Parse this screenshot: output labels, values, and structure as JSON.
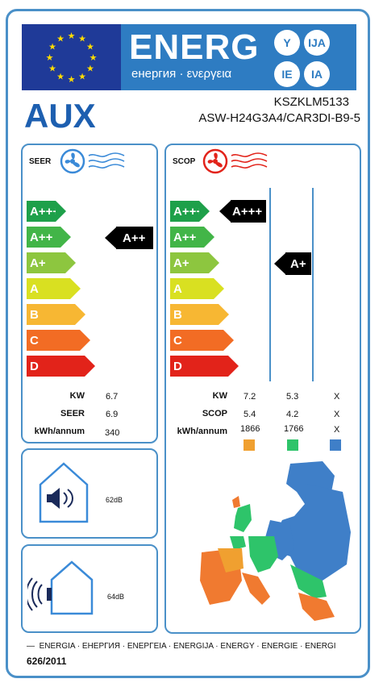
{
  "header": {
    "energy_word": "ENERG",
    "energy_sub": "енергия · ενεργεια",
    "lang_circles": [
      "Y",
      "IJA",
      "IE",
      "IA"
    ],
    "brand": "AUX",
    "model_indoor": "KSZKLM5133",
    "model_outdoor": "ASW-H24G3A4/CAR3DI-B9-5"
  },
  "seer": {
    "title": "SEER",
    "classes": [
      "A+++",
      "A++",
      "A+",
      "A",
      "B",
      "C",
      "D"
    ],
    "rating": "A++",
    "rows": [
      {
        "label": "KW",
        "value": "6.7"
      },
      {
        "label": "SEER",
        "value": "6.9"
      },
      {
        "label": "kWh/annum",
        "value": "340"
      }
    ]
  },
  "scop": {
    "title": "SCOP",
    "classes": [
      "A+++",
      "A++",
      "A+",
      "A",
      "B",
      "C",
      "D"
    ],
    "rating_warm": "A+++",
    "rating_average": "A+",
    "rows": [
      {
        "label": "KW",
        "values": [
          "7.2",
          "5.3",
          "X"
        ]
      },
      {
        "label": "SCOP",
        "values": [
          "5.4",
          "4.2",
          "X"
        ]
      },
      {
        "label": "kWh/annum",
        "values": [
          "1866",
          "1766",
          "X"
        ]
      }
    ],
    "zone_colors": [
      "#f0a030",
      "#2ec46a",
      "#3f7fc8"
    ]
  },
  "noise": {
    "indoor": "62dB",
    "outdoor": "64dB"
  },
  "footer": {
    "languages": "ENERGIA · ЕНЕРГИЯ · ENEPΓΕΙΑ · ENERGIJA · ENERGY · ENERGIE · ENERGI",
    "regulation": "626/2011"
  },
  "colors": {
    "border": "#4a90c8",
    "classes": [
      "#1ea04a",
      "#42b548",
      "#8dc63f",
      "#d9e021",
      "#f7b733",
      "#f26c24",
      "#e2231a"
    ]
  }
}
